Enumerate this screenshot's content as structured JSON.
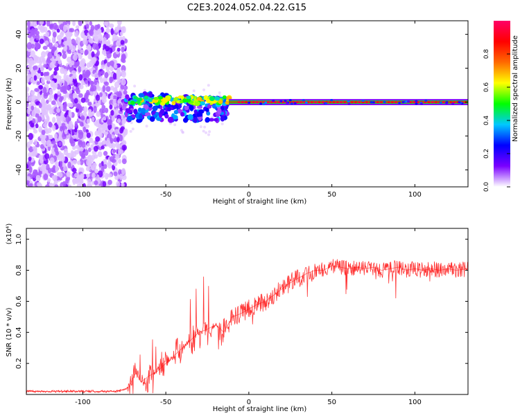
{
  "title": "C2E3.2024.052.04.22.G15",
  "chart_data": [
    {
      "type": "heatmap",
      "xlabel": "Height of straight line (km)",
      "ylabel": "Frequency (Hz)",
      "xlim": [
        -134,
        132
      ],
      "ylim": [
        -50,
        48
      ],
      "xticks": [
        -100,
        -50,
        0,
        50,
        100
      ],
      "yticks": [
        -40,
        -20,
        0,
        20,
        40
      ],
      "colorbar": {
        "label": "Normalized spectral amplitude",
        "range": [
          0.0,
          1.0
        ],
        "ticks": [
          0.0,
          0.2,
          0.4,
          0.6,
          0.8
        ],
        "colormap": [
          "#ffffff",
          "#7a00ff",
          "#0000ff",
          "#00c8ff",
          "#00ff00",
          "#ffff00",
          "#ff6a00",
          "#ff0000",
          "#ff0066"
        ]
      },
      "description_regions": [
        {
          "x_range": [
            -134,
            -74
          ],
          "freq_range": [
            -50,
            48
          ],
          "amplitude": 0.08,
          "pattern": "broadband noise"
        },
        {
          "x_range": [
            -74,
            -12
          ],
          "freq_range": [
            -12,
            7
          ],
          "amplitude": 0.3,
          "pattern": "scattered signal"
        },
        {
          "x_range": [
            -12,
            132
          ],
          "freq_range": [
            -1,
            1
          ],
          "amplitude": 0.95,
          "pattern": "narrow carrier line"
        }
      ]
    },
    {
      "type": "line",
      "xlabel": "Height of straight line (km)",
      "ylabel": "SNR (10 * v/v)",
      "yscale_label": "(x10⁴)",
      "xlim": [
        -134,
        132
      ],
      "ylim": [
        0.0,
        1.07
      ],
      "xticks": [
        -100,
        -50,
        0,
        50,
        100
      ],
      "yticks": [
        0.2,
        0.4,
        0.6,
        0.8,
        1.0
      ],
      "color": "#ff0000",
      "series": [
        {
          "x": [
            -134,
            -120,
            -100,
            -90,
            -80,
            -75,
            -72,
            -70,
            -68,
            -65,
            -60,
            -55,
            -50,
            -45,
            -40,
            -35,
            -30,
            -25,
            -20,
            -15,
            -10,
            -5,
            0,
            5,
            10,
            15,
            20,
            25,
            30,
            35,
            40,
            45,
            50,
            55,
            60,
            65,
            70,
            75,
            80,
            85,
            90,
            95,
            100,
            105,
            110,
            115,
            120,
            125,
            132
          ],
          "y": [
            0.02,
            0.02,
            0.02,
            0.02,
            0.02,
            0.03,
            0.05,
            0.1,
            0.14,
            0.08,
            0.12,
            0.15,
            0.2,
            0.25,
            0.3,
            0.35,
            0.4,
            0.42,
            0.45,
            0.4,
            0.5,
            0.52,
            0.55,
            0.58,
            0.6,
            0.64,
            0.68,
            0.72,
            0.75,
            0.78,
            0.8,
            0.8,
            0.83,
            0.82,
            0.81,
            0.82,
            0.81,
            0.82,
            0.8,
            0.81,
            0.82,
            0.8,
            0.81,
            0.8,
            0.81,
            0.8,
            0.81,
            0.8,
            0.81
          ]
        }
      ]
    }
  ]
}
